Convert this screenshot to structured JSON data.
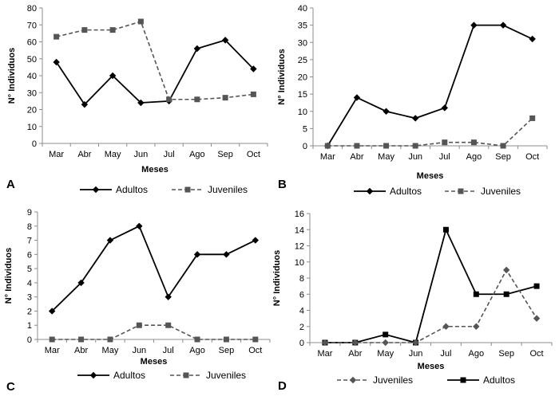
{
  "chart_data": [
    {
      "type": "line",
      "panel_letter": "A",
      "categories": [
        "Mar",
        "Abr",
        "May",
        "Jun",
        "Jul",
        "Ago",
        "Sep",
        "Oct"
      ],
      "xlabel": "Meses",
      "ylabel": "N° Individuos",
      "ylim": [
        0,
        80
      ],
      "yticks": [
        0,
        10,
        20,
        30,
        40,
        50,
        60,
        70,
        80
      ],
      "grid": false,
      "series": [
        {
          "name": "Adultos",
          "values": [
            48,
            23,
            40,
            24,
            25,
            56,
            61,
            44
          ],
          "dashed": false,
          "marker": "diamond",
          "color": "#000000"
        },
        {
          "name": "Juveniles",
          "values": [
            63,
            67,
            67,
            72,
            26,
            26,
            27,
            29
          ],
          "dashed": true,
          "marker": "square",
          "color": "#555555"
        }
      ],
      "legend_order": [
        "Adultos",
        "Juveniles"
      ]
    },
    {
      "type": "line",
      "panel_letter": "B",
      "categories": [
        "Mar",
        "Abr",
        "May",
        "Jun",
        "Jul",
        "Ago",
        "Sep",
        "Oct"
      ],
      "xlabel": "Meses",
      "ylabel": "N° Individuos",
      "ylim": [
        0,
        40
      ],
      "yticks": [
        0,
        5,
        10,
        15,
        20,
        25,
        30,
        35,
        40
      ],
      "grid": false,
      "series": [
        {
          "name": "Adultos",
          "values": [
            0,
            14,
            10,
            8,
            11,
            35,
            35,
            31
          ],
          "dashed": false,
          "marker": "diamond",
          "color": "#000000"
        },
        {
          "name": "Juveniles",
          "values": [
            0,
            0,
            0,
            0,
            1,
            1,
            0,
            8
          ],
          "dashed": true,
          "marker": "square",
          "color": "#555555"
        }
      ],
      "legend_order": [
        "Adultos",
        "Juveniles"
      ]
    },
    {
      "type": "line",
      "panel_letter": "C",
      "categories": [
        "Mar",
        "Abr",
        "May",
        "Jun",
        "Jul",
        "Ago",
        "Sep",
        "Oct"
      ],
      "xlabel": "Meses",
      "ylabel": "N° Individuos",
      "ylim": [
        0,
        9
      ],
      "yticks": [
        0,
        1,
        2,
        3,
        4,
        5,
        6,
        7,
        8,
        9
      ],
      "grid": false,
      "series": [
        {
          "name": "Adultos",
          "values": [
            2,
            4,
            7,
            8,
            3,
            6,
            6,
            7
          ],
          "dashed": false,
          "marker": "diamond",
          "color": "#000000"
        },
        {
          "name": "Juveniles",
          "values": [
            0,
            0,
            0,
            1,
            1,
            0,
            0,
            0
          ],
          "dashed": true,
          "marker": "square",
          "color": "#555555"
        }
      ],
      "legend_order": [
        "Adultos",
        "Juveniles"
      ]
    },
    {
      "type": "line",
      "panel_letter": "D",
      "categories": [
        "Mar",
        "Abr",
        "May",
        "Jun",
        "Jul",
        "Ago",
        "Sep",
        "Oct"
      ],
      "xlabel": "Meses",
      "ylabel": "N° Individuos",
      "ylim": [
        0,
        16
      ],
      "yticks": [
        0,
        2,
        4,
        6,
        8,
        10,
        12,
        14,
        16
      ],
      "grid": false,
      "series": [
        {
          "name": "Adultos",
          "values": [
            0,
            0,
            1,
            0,
            14,
            6,
            6,
            7
          ],
          "dashed": false,
          "marker": "square",
          "color": "#000000"
        },
        {
          "name": "Juveniles",
          "values": [
            0,
            0,
            0,
            0,
            2,
            2,
            9,
            3
          ],
          "dashed": true,
          "marker": "diamond",
          "color": "#555555"
        }
      ],
      "legend_order": [
        "Juveniles",
        "Adultos"
      ]
    }
  ]
}
